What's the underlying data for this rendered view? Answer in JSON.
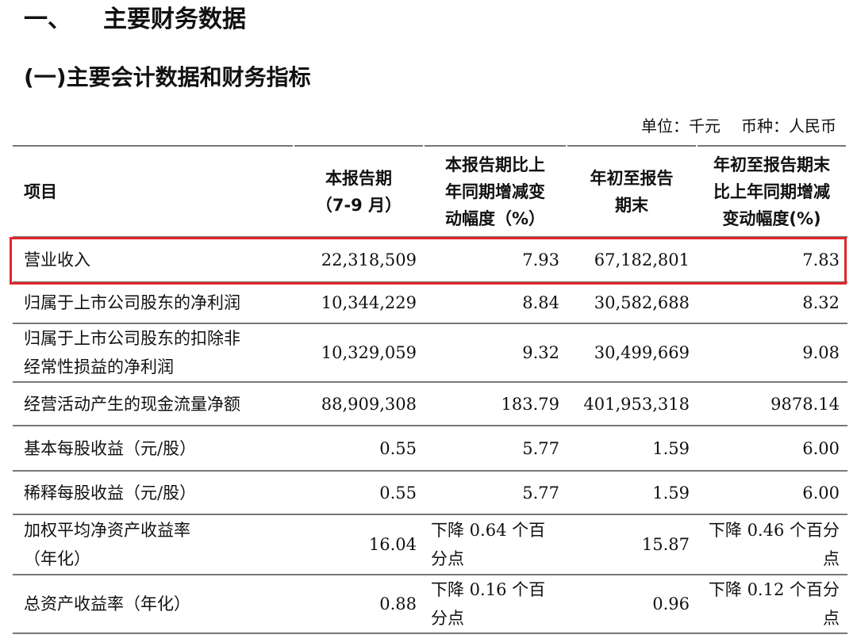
{
  "heading": {
    "number": "一、",
    "title": "主要财务数据"
  },
  "subheading": "(一)主要会计数据和财务指标",
  "unit": {
    "unit_label": "单位：千元",
    "currency_label": "币种：人民币"
  },
  "table": {
    "headers": [
      [
        "项目"
      ],
      [
        "本报告期",
        "（7-9 月）"
      ],
      [
        "本报告期比上",
        "年同期增减变",
        "动幅度（%）"
      ],
      [
        "年初至报告",
        "期末"
      ],
      [
        "年初至报告期末",
        "比上年同期增减",
        "变动幅度(%)"
      ]
    ],
    "rows": [
      {
        "label": [
          "营业收入"
        ],
        "q3": "22,318,509",
        "q3_change": [
          "7.93"
        ],
        "ytd": "67,182,801",
        "ytd_change": [
          "7.83"
        ],
        "highlighted": true
      },
      {
        "label": [
          "归属于上市公司股东的净利润"
        ],
        "q3": "10,344,229",
        "q3_change": [
          "8.84"
        ],
        "ytd": "30,582,688",
        "ytd_change": [
          "8.32"
        ]
      },
      {
        "label": [
          "归属于上市公司股东的扣除非",
          "经常性损益的净利润"
        ],
        "q3": "10,329,059",
        "q3_change": [
          "9.32"
        ],
        "ytd": "30,499,669",
        "ytd_change": [
          "9.08"
        ]
      },
      {
        "label": [
          "经营活动产生的现金流量净额"
        ],
        "q3": "88,909,308",
        "q3_change": [
          "183.79"
        ],
        "ytd": "401,953,318",
        "ytd_change": [
          "9878.14"
        ]
      },
      {
        "label": [
          "基本每股收益（元/股）"
        ],
        "q3": "0.55",
        "q3_change": [
          "5.77"
        ],
        "ytd": "1.59",
        "ytd_change": [
          "6.00"
        ]
      },
      {
        "label": [
          "稀释每股收益（元/股）"
        ],
        "q3": "0.55",
        "q3_change": [
          "5.77"
        ],
        "ytd": "1.59",
        "ytd_change": [
          "6.00"
        ]
      },
      {
        "label": [
          "加权平均净资产收益率",
          "（年化）"
        ],
        "q3": "16.04",
        "q3_change": [
          "下降 0.64 个百",
          "分点"
        ],
        "ytd": "15.87",
        "ytd_change": [
          "下降 0.46 个百分",
          "点"
        ]
      },
      {
        "label": [
          "总资产收益率（年化）"
        ],
        "q3": "0.88",
        "q3_change": [
          "下降 0.16 个百",
          "分点"
        ],
        "ytd": "0.96",
        "ytd_change": [
          "下降 0.12 个百分",
          "点"
        ]
      }
    ]
  }
}
